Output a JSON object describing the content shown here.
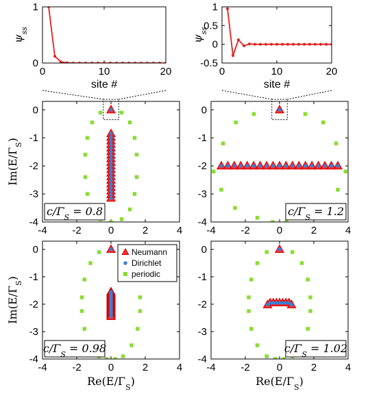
{
  "colors": {
    "neumann_fill": "#ff2a2a",
    "neumann_edge": "#cc0000",
    "dirichlet": "#3a7fd5",
    "periodic": "#88dd33",
    "line": "#e02020"
  },
  "chart_data": [
    {
      "id": "top-left",
      "type": "line",
      "xlabel": "site #",
      "ylabel": "ψ_ss",
      "xlim": [
        0,
        20
      ],
      "ylim": [
        0,
        1
      ],
      "xticks": [
        {
          "v": 0,
          "t": "0"
        },
        {
          "v": 10,
          "t": "10"
        },
        {
          "v": 20,
          "t": "20"
        }
      ],
      "yticks": [
        {
          "v": 0,
          "t": "0"
        },
        {
          "v": 1,
          "t": "1"
        }
      ],
      "x": [
        1,
        2,
        3,
        4,
        5,
        6,
        7,
        8,
        9,
        10,
        11,
        12,
        13,
        14,
        15,
        16,
        17,
        18,
        19,
        20
      ],
      "y": [
        1.0,
        0.12,
        0.02,
        0.004,
        0,
        0,
        0,
        0,
        0,
        0,
        0,
        0,
        0,
        0,
        0,
        0,
        0,
        0,
        0,
        0
      ]
    },
    {
      "id": "top-right",
      "type": "line",
      "xlabel": "site #",
      "ylabel": "ψ_ss",
      "xlim": [
        0,
        20
      ],
      "ylim": [
        -0.5,
        1
      ],
      "xticks": [
        {
          "v": 0,
          "t": "0"
        },
        {
          "v": 10,
          "t": "10"
        },
        {
          "v": 20,
          "t": "20"
        }
      ],
      "yticks": [
        {
          "v": -0.5,
          "t": "-0.5"
        },
        {
          "v": 0,
          "t": "0"
        },
        {
          "v": 0.5,
          "t": "0.5"
        },
        {
          "v": 1,
          "t": "1"
        }
      ],
      "x": [
        1,
        2,
        3,
        4,
        5,
        6,
        7,
        8,
        9,
        10,
        11,
        12,
        13,
        14,
        15,
        16,
        17,
        18,
        19,
        20
      ],
      "y": [
        0.95,
        -0.3,
        0.12,
        -0.04,
        0.01,
        0,
        0,
        0,
        0,
        0,
        0,
        0,
        0,
        0,
        0,
        0,
        0,
        0,
        0,
        0
      ]
    },
    {
      "id": "mid-left",
      "type": "scatter",
      "annotation": "c/Γ_S = 0.8",
      "xlabel": "",
      "ylabel": "Im(E/Γ_S)",
      "xlim": [
        -4,
        4
      ],
      "ylim": [
        -4,
        0.3
      ],
      "xticks": [
        {
          "v": -4,
          "t": "-4"
        },
        {
          "v": -2,
          "t": "-2"
        },
        {
          "v": 0,
          "t": "0"
        },
        {
          "v": 2,
          "t": "2"
        },
        {
          "v": 4,
          "t": "4"
        }
      ],
      "yticks": [
        {
          "v": 0,
          "t": "0"
        },
        {
          "v": -1,
          "t": "-1"
        },
        {
          "v": -2,
          "t": "-2"
        },
        {
          "v": -3,
          "t": "-3"
        },
        {
          "v": -4,
          "t": "-4"
        }
      ],
      "segment": {
        "x1": 0,
        "y1": -0.85,
        "x2": 0,
        "y2": -3.15,
        "n": 19
      },
      "extra_points": [
        {
          "x": 0,
          "y": 0
        }
      ],
      "periodic": [
        {
          "x": 0,
          "y": 0
        },
        {
          "x": 0.62,
          "y": -0.1
        },
        {
          "x": 1.1,
          "y": -0.45
        },
        {
          "x": 1.38,
          "y": -1.0
        },
        {
          "x": 1.5,
          "y": -1.6
        },
        {
          "x": 1.5,
          "y": -2.4
        },
        {
          "x": 1.38,
          "y": -3.0
        },
        {
          "x": 1.1,
          "y": -3.55
        },
        {
          "x": 0.62,
          "y": -3.9
        },
        {
          "x": 0,
          "y": -4.0
        },
        {
          "x": -0.62,
          "y": -3.9
        },
        {
          "x": -1.1,
          "y": -3.55
        },
        {
          "x": -1.38,
          "y": -3.0
        },
        {
          "x": -1.5,
          "y": -2.4
        },
        {
          "x": -1.5,
          "y": -1.6
        },
        {
          "x": -1.38,
          "y": -1.0
        },
        {
          "x": -1.1,
          "y": -0.45
        },
        {
          "x": -0.62,
          "y": -0.1
        }
      ]
    },
    {
      "id": "mid-right",
      "type": "scatter",
      "annotation": "c/Γ_S = 1.2",
      "xlabel": "",
      "ylabel": "",
      "xlim": [
        -4,
        4
      ],
      "ylim": [
        -4,
        0.3
      ],
      "xticks": [
        {
          "v": -4,
          "t": "-4"
        },
        {
          "v": -2,
          "t": "-2"
        },
        {
          "v": 0,
          "t": "0"
        },
        {
          "v": 2,
          "t": "2"
        },
        {
          "v": 4,
          "t": "4"
        }
      ],
      "yticks": [
        {
          "v": 0,
          "t": "0"
        },
        {
          "v": -1,
          "t": "-1"
        },
        {
          "v": -2,
          "t": "-2"
        },
        {
          "v": -3,
          "t": "-3"
        },
        {
          "v": -4,
          "t": "-4"
        }
      ],
      "segment": {
        "x1": -3.4,
        "y1": -2.0,
        "x2": 3.4,
        "y2": -2.0,
        "n": 19
      },
      "extra_points": [
        {
          "x": 0,
          "y": 0
        }
      ],
      "periodic": [
        {
          "x": 0,
          "y": 0
        },
        {
          "x": -1.5,
          "y": -0.15
        },
        {
          "x": 1.5,
          "y": -0.15
        },
        {
          "x": -2.55,
          "y": -0.45
        },
        {
          "x": 2.55,
          "y": -0.45
        },
        {
          "x": -3.3,
          "y": -1.2
        },
        {
          "x": 3.3,
          "y": -1.2
        },
        {
          "x": -3.85,
          "y": -2.2
        },
        {
          "x": 3.85,
          "y": -2.2
        },
        {
          "x": -3.4,
          "y": -2.85
        },
        {
          "x": 3.4,
          "y": -2.85
        },
        {
          "x": -2.6,
          "y": -3.5
        },
        {
          "x": 2.6,
          "y": -3.5
        },
        {
          "x": -1.3,
          "y": -3.85
        },
        {
          "x": 1.3,
          "y": -3.85
        },
        {
          "x": -0.4,
          "y": -4.0
        },
        {
          "x": 0.4,
          "y": -4.0
        }
      ]
    },
    {
      "id": "bot-left",
      "type": "scatter",
      "annotation": "c/Γ_S = 0.98",
      "xlabel": "Re(E/Γ_S)",
      "ylabel": "Im(E/Γ_S)",
      "xlim": [
        -4,
        4
      ],
      "ylim": [
        -4,
        0.3
      ],
      "xticks": [
        {
          "v": -4,
          "t": "-4"
        },
        {
          "v": -2,
          "t": "-2"
        },
        {
          "v": 0,
          "t": "0"
        },
        {
          "v": 2,
          "t": "2"
        },
        {
          "v": 4,
          "t": "4"
        }
      ],
      "yticks": [
        {
          "v": 0,
          "t": "0"
        },
        {
          "v": -1,
          "t": "-1"
        },
        {
          "v": -2,
          "t": "-2"
        },
        {
          "v": -3,
          "t": "-3"
        },
        {
          "v": -4,
          "t": "-4"
        }
      ],
      "segment": {
        "x1": 0,
        "y1": -1.55,
        "x2": 0,
        "y2": -2.45,
        "n": 19
      },
      "extra_points": [
        {
          "x": 0,
          "y": 0
        }
      ],
      "periodic": [
        {
          "x": 0,
          "y": 0
        },
        {
          "x": 0.7,
          "y": -0.1
        },
        {
          "x": 1.2,
          "y": -0.5
        },
        {
          "x": 1.55,
          "y": -1.1
        },
        {
          "x": 1.7,
          "y": -1.75
        },
        {
          "x": 1.7,
          "y": -2.25
        },
        {
          "x": 1.55,
          "y": -2.9
        },
        {
          "x": 1.2,
          "y": -3.5
        },
        {
          "x": 0.7,
          "y": -3.9
        },
        {
          "x": 0.25,
          "y": -4.0
        },
        {
          "x": -0.25,
          "y": -4.0
        },
        {
          "x": -0.7,
          "y": -3.9
        },
        {
          "x": -1.2,
          "y": -3.5
        },
        {
          "x": -1.55,
          "y": -2.9
        },
        {
          "x": -1.7,
          "y": -2.25
        },
        {
          "x": -1.7,
          "y": -1.75
        },
        {
          "x": -1.55,
          "y": -1.1
        },
        {
          "x": -1.2,
          "y": -0.5
        },
        {
          "x": -0.7,
          "y": -0.1
        }
      ],
      "legend": {
        "placement": "top-right",
        "entries": [
          "Neumann",
          "Dirichlet",
          "periodic"
        ]
      }
    },
    {
      "id": "bot-right",
      "type": "scatter",
      "annotation": "c/Γ_S = 1.02",
      "xlabel": "Re(E/Γ_S)",
      "ylabel": "",
      "xlim": [
        -4,
        4
      ],
      "ylim": [
        -4,
        0.3
      ],
      "xticks": [
        {
          "v": -4,
          "t": "-4"
        },
        {
          "v": -2,
          "t": "-2"
        },
        {
          "v": 0,
          "t": "0"
        },
        {
          "v": 2,
          "t": "2"
        },
        {
          "v": 4,
          "t": "4"
        }
      ],
      "yticks": [
        {
          "v": 0,
          "t": "0"
        },
        {
          "v": -1,
          "t": "-1"
        },
        {
          "v": -2,
          "t": "-2"
        },
        {
          "v": -3,
          "t": "-3"
        },
        {
          "v": -4,
          "t": "-4"
        }
      ],
      "segment": {
        "x1": -0.55,
        "y1": -1.95,
        "x2": 0.55,
        "y2": -1.95,
        "n": 7
      },
      "extra_points": [
        {
          "x": 0,
          "y": 0
        },
        {
          "x": -0.7,
          "y": -2.02
        },
        {
          "x": 0.7,
          "y": -2.02
        }
      ],
      "periodic": [
        {
          "x": 0,
          "y": 0
        },
        {
          "x": 0.75,
          "y": -0.1
        },
        {
          "x": 1.3,
          "y": -0.5
        },
        {
          "x": 1.65,
          "y": -1.1
        },
        {
          "x": 1.8,
          "y": -1.75
        },
        {
          "x": 1.8,
          "y": -2.25
        },
        {
          "x": 1.65,
          "y": -2.9
        },
        {
          "x": 1.3,
          "y": -3.5
        },
        {
          "x": 0.75,
          "y": -3.9
        },
        {
          "x": 0.25,
          "y": -4.0
        },
        {
          "x": -0.25,
          "y": -4.0
        },
        {
          "x": -0.75,
          "y": -3.9
        },
        {
          "x": -1.3,
          "y": -3.5
        },
        {
          "x": -1.65,
          "y": -2.9
        },
        {
          "x": -1.8,
          "y": -2.25
        },
        {
          "x": -1.8,
          "y": -1.75
        },
        {
          "x": -1.65,
          "y": -1.1
        },
        {
          "x": -1.3,
          "y": -0.5
        },
        {
          "x": -0.75,
          "y": -0.1
        }
      ]
    }
  ]
}
